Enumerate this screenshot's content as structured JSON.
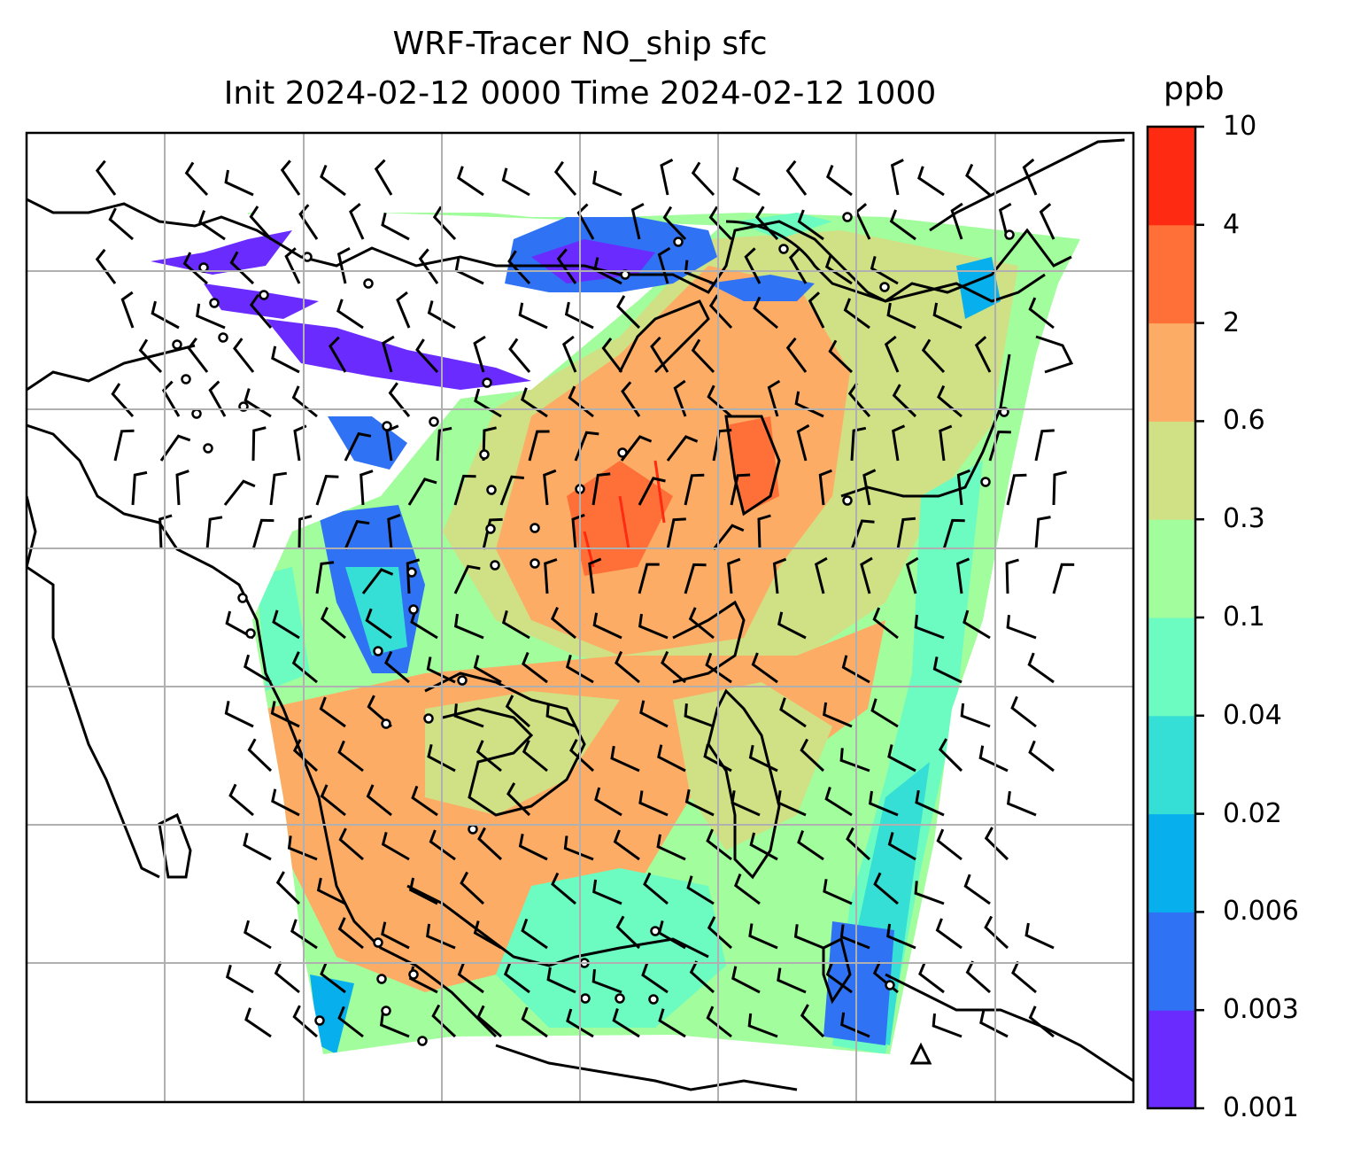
{
  "chart_data": {
    "type": "heatmap",
    "title": "WRF-Tracer NO_ship sfc",
    "subtitle": "Init 2024-02-12 0000 Time 2024-02-12 1000",
    "colorbar": {
      "unit": "ppb",
      "ticks": [
        "0.001",
        "0.003",
        "0.006",
        "0.02",
        "0.04",
        "0.1",
        "0.3",
        "0.6",
        "2",
        "4",
        "10"
      ],
      "colors": [
        "#6a2bff",
        "#3072f4",
        "#07b0ed",
        "#35dfd5",
        "#6cfbc0",
        "#a2fd9c",
        "#cfe184",
        "#fdac65",
        "#fe7037",
        "#fe2a12"
      ]
    },
    "grid": true,
    "overlays": [
      "coastlines",
      "country borders",
      "wind barbs"
    ]
  }
}
